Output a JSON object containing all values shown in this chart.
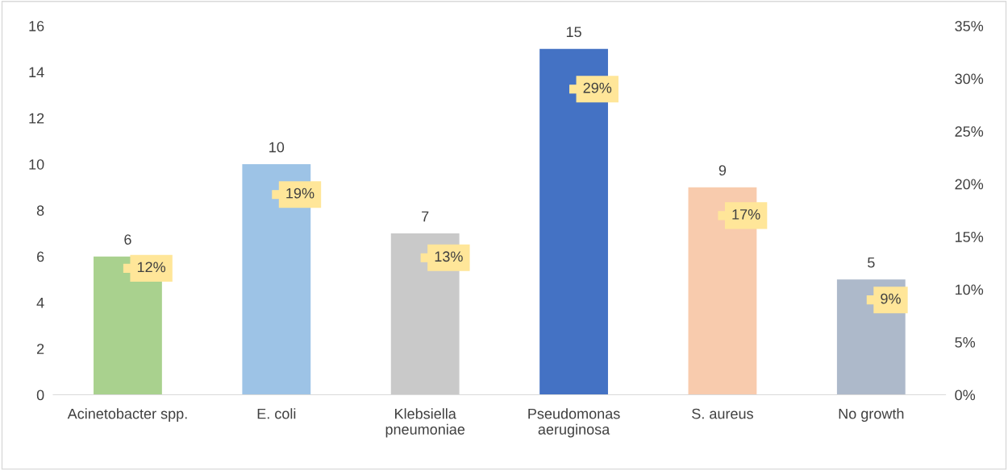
{
  "chart_data": {
    "type": "bar",
    "categories": [
      "Acinetobacter spp.",
      "E. coli",
      "Klebsiella\npneumoniae",
      "Pseudomonas\naeruginosa",
      "S. aureus",
      "No growth"
    ],
    "series": [
      {
        "values": [
          6,
          10,
          7,
          15,
          9,
          5
        ],
        "colors": [
          "#a9d18e",
          "#9dc3e6",
          "#c9c9c9",
          "#4472c4",
          "#f8cbad",
          "#adb9ca"
        ]
      },
      {
        "type": "scatter",
        "axis": "y2",
        "marker": "square",
        "color": "#ffe699",
        "values": [
          12,
          19,
          13,
          29,
          17,
          9
        ],
        "value_labels": [
          "12%",
          "19%",
          "13%",
          "29%",
          "17%",
          "9%"
        ]
      }
    ],
    "data_labels": true,
    "ylim": [
      0,
      16
    ],
    "yticks": [
      0,
      2,
      4,
      6,
      8,
      10,
      12,
      14,
      16
    ],
    "y2lim": [
      0,
      35
    ],
    "y2ticks": [
      {
        "value": 0,
        "label": "0%"
      },
      {
        "value": 5,
        "label": "5%"
      },
      {
        "value": 10,
        "label": "10%"
      },
      {
        "value": 15,
        "label": "15%"
      },
      {
        "value": 20,
        "label": "20%"
      },
      {
        "value": 25,
        "label": "25%"
      },
      {
        "value": 30,
        "label": "30%"
      },
      {
        "value": 35,
        "label": "35%"
      }
    ],
    "grid": false,
    "legend": false
  }
}
